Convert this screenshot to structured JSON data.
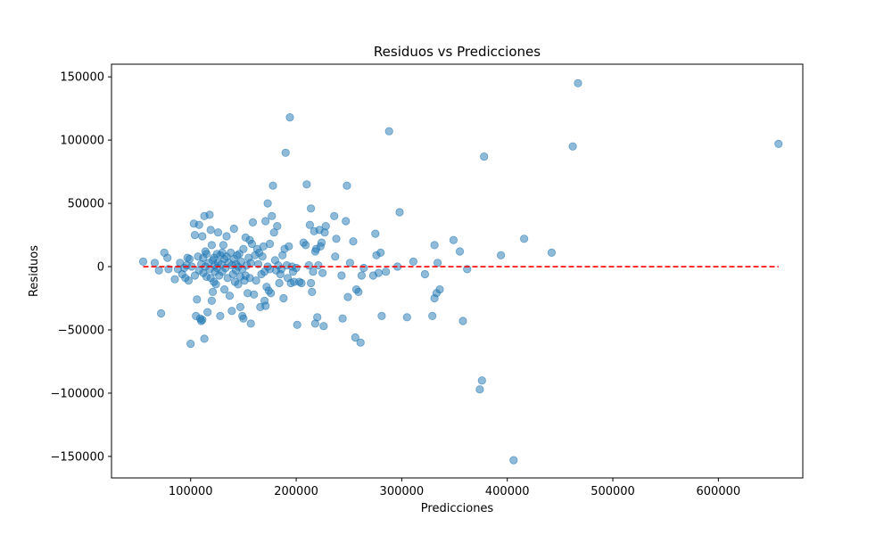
{
  "chart_data": {
    "type": "scatter",
    "title": "Residuos vs Predicciones",
    "xlabel": "Predicciones",
    "ylabel": "Residuos",
    "xlim": [
      25000,
      680000
    ],
    "ylim": [
      -167000,
      160000
    ],
    "xticks": [
      100000,
      200000,
      300000,
      400000,
      500000,
      600000
    ],
    "xtick_labels": [
      "100000",
      "200000",
      "300000",
      "400000",
      "500000",
      "600000"
    ],
    "yticks": [
      -150000,
      -100000,
      -50000,
      0,
      50000,
      100000,
      150000
    ],
    "ytick_labels": [
      "−150000",
      "−100000",
      "−50000",
      "0",
      "50000",
      "100000",
      "150000"
    ],
    "grid": false,
    "marker_color": "#1f77b4",
    "marker_alpha": 0.5,
    "reference_line": {
      "y": 0,
      "x_range": [
        55000,
        657000
      ],
      "color": "#ff0000",
      "style": "dashed"
    },
    "points": [
      [
        55000,
        4000
      ],
      [
        66000,
        3000
      ],
      [
        70000,
        -3000
      ],
      [
        72000,
        -37000
      ],
      [
        75000,
        11000
      ],
      [
        78000,
        7000
      ],
      [
        79000,
        -2000
      ],
      [
        85000,
        -10000
      ],
      [
        88000,
        -2000
      ],
      [
        90000,
        3000
      ],
      [
        92000,
        -6000
      ],
      [
        94000,
        -1000
      ],
      [
        95000,
        -9000
      ],
      [
        96000,
        1000
      ],
      [
        97000,
        7000
      ],
      [
        98000,
        -11000
      ],
      [
        99000,
        6000
      ],
      [
        100000,
        -61000
      ],
      [
        101000,
        0
      ],
      [
        103000,
        34000
      ],
      [
        104000,
        25000
      ],
      [
        104000,
        -7000
      ],
      [
        105000,
        -39000
      ],
      [
        106000,
        -26000
      ],
      [
        107000,
        8000
      ],
      [
        108000,
        33000
      ],
      [
        108000,
        -3000
      ],
      [
        109000,
        -41000
      ],
      [
        110000,
        2000
      ],
      [
        110000,
        -43000
      ],
      [
        111000,
        -42000
      ],
      [
        111000,
        24000
      ],
      [
        112000,
        7000
      ],
      [
        112000,
        -5000
      ],
      [
        113000,
        40000
      ],
      [
        113000,
        -57000
      ],
      [
        114000,
        12000
      ],
      [
        114000,
        0
      ],
      [
        115000,
        10000
      ],
      [
        115000,
        -8000
      ],
      [
        116000,
        -36000
      ],
      [
        117000,
        3000
      ],
      [
        118000,
        41000
      ],
      [
        118000,
        -2000
      ],
      [
        119000,
        29000
      ],
      [
        119000,
        -9000
      ],
      [
        120000,
        17000
      ],
      [
        120000,
        -27000
      ],
      [
        121000,
        5000
      ],
      [
        121000,
        -20000
      ],
      [
        122000,
        7000
      ],
      [
        122000,
        -12000
      ],
      [
        123000,
        1000
      ],
      [
        123000,
        -4000
      ],
      [
        124000,
        -14000
      ],
      [
        125000,
        10000
      ],
      [
        125000,
        -1000
      ],
      [
        126000,
        27000
      ],
      [
        126000,
        3000
      ],
      [
        127000,
        -7000
      ],
      [
        128000,
        9000
      ],
      [
        128000,
        -39000
      ],
      [
        129000,
        2000
      ],
      [
        130000,
        11000
      ],
      [
        130000,
        -4000
      ],
      [
        131000,
        17000
      ],
      [
        132000,
        6000
      ],
      [
        132000,
        -18000
      ],
      [
        133000,
        -1000
      ],
      [
        134000,
        24000
      ],
      [
        134000,
        8000
      ],
      [
        135000,
        -9000
      ],
      [
        136000,
        3000
      ],
      [
        137000,
        -23000
      ],
      [
        138000,
        11000
      ],
      [
        139000,
        1000
      ],
      [
        139000,
        -35000
      ],
      [
        140000,
        -6000
      ],
      [
        141000,
        30000
      ],
      [
        141000,
        6000
      ],
      [
        142000,
        -12000
      ],
      [
        143000,
        2000
      ],
      [
        143000,
        -3000
      ],
      [
        144000,
        9000
      ],
      [
        145000,
        -14000
      ],
      [
        145000,
        0
      ],
      [
        146000,
        10000
      ],
      [
        147000,
        -32000
      ],
      [
        147000,
        -8000
      ],
      [
        148000,
        4000
      ],
      [
        149000,
        -39000
      ],
      [
        149000,
        -2000
      ],
      [
        150000,
        14000
      ],
      [
        150000,
        -41000
      ],
      [
        151000,
        -11000
      ],
      [
        152000,
        23000
      ],
      [
        152000,
        -7000
      ],
      [
        153000,
        1000
      ],
      [
        154000,
        -21000
      ],
      [
        155000,
        7000
      ],
      [
        156000,
        21000
      ],
      [
        156000,
        -9000
      ],
      [
        157000,
        3000
      ],
      [
        157000,
        -45000
      ],
      [
        158000,
        18000
      ],
      [
        159000,
        35000
      ],
      [
        160000,
        -22000
      ],
      [
        161000,
        9000
      ],
      [
        162000,
        -11000
      ],
      [
        163000,
        14000
      ],
      [
        164000,
        2000
      ],
      [
        165000,
        11000
      ],
      [
        166000,
        -32000
      ],
      [
        167000,
        -6000
      ],
      [
        168000,
        8000
      ],
      [
        169000,
        16000
      ],
      [
        170000,
        -4000
      ],
      [
        170000,
        -27000
      ],
      [
        171000,
        36000
      ],
      [
        171000,
        -31000
      ],
      [
        172000,
        -16000
      ],
      [
        173000,
        0
      ],
      [
        173000,
        50000
      ],
      [
        174000,
        -19000
      ],
      [
        175000,
        18000
      ],
      [
        175000,
        -2000
      ],
      [
        176000,
        -21000
      ],
      [
        177000,
        40000
      ],
      [
        178000,
        64000
      ],
      [
        179000,
        27000
      ],
      [
        180000,
        5000
      ],
      [
        181000,
        -3000
      ],
      [
        182000,
        32000
      ],
      [
        183000,
        1000
      ],
      [
        184000,
        -13000
      ],
      [
        185000,
        -6000
      ],
      [
        186000,
        -2000
      ],
      [
        187000,
        9000
      ],
      [
        188000,
        -25000
      ],
      [
        189000,
        14000
      ],
      [
        190000,
        90000
      ],
      [
        191000,
        1000
      ],
      [
        192000,
        -9000
      ],
      [
        193000,
        16000
      ],
      [
        194000,
        118000
      ],
      [
        195000,
        -13000
      ],
      [
        196000,
        0
      ],
      [
        197000,
        -4000
      ],
      [
        198000,
        -12000
      ],
      [
        200000,
        -1000
      ],
      [
        201000,
        -46000
      ],
      [
        203000,
        -12000
      ],
      [
        205000,
        -13000
      ],
      [
        207000,
        19000
      ],
      [
        209000,
        17000
      ],
      [
        210000,
        65000
      ],
      [
        212000,
        1000
      ],
      [
        213000,
        33000
      ],
      [
        214000,
        46000
      ],
      [
        214000,
        -13000
      ],
      [
        215000,
        -20000
      ],
      [
        216000,
        -4000
      ],
      [
        217000,
        28000
      ],
      [
        218000,
        12000
      ],
      [
        218000,
        -45000
      ],
      [
        219000,
        14000
      ],
      [
        220000,
        -40000
      ],
      [
        221000,
        1000
      ],
      [
        222000,
        29000
      ],
      [
        223000,
        16000
      ],
      [
        224000,
        19000
      ],
      [
        225000,
        -5000
      ],
      [
        226000,
        -47000
      ],
      [
        227000,
        27000
      ],
      [
        228000,
        32000
      ],
      [
        236000,
        40000
      ],
      [
        237000,
        8000
      ],
      [
        238000,
        22000
      ],
      [
        243000,
        -7000
      ],
      [
        244000,
        -41000
      ],
      [
        247000,
        36000
      ],
      [
        248000,
        64000
      ],
      [
        249000,
        -24000
      ],
      [
        251000,
        3000
      ],
      [
        254000,
        20000
      ],
      [
        256000,
        -56000
      ],
      [
        257000,
        -18000
      ],
      [
        259000,
        -20000
      ],
      [
        261000,
        -60000
      ],
      [
        262000,
        -7000
      ],
      [
        264000,
        -1000
      ],
      [
        273000,
        -7000
      ],
      [
        275000,
        26000
      ],
      [
        276000,
        9000
      ],
      [
        278000,
        -5000
      ],
      [
        280000,
        11000
      ],
      [
        281000,
        -39000
      ],
      [
        285000,
        -4000
      ],
      [
        288000,
        107000
      ],
      [
        296000,
        0
      ],
      [
        298000,
        43000
      ],
      [
        305000,
        -40000
      ],
      [
        311000,
        4000
      ],
      [
        322000,
        -6000
      ],
      [
        329000,
        -39000
      ],
      [
        331000,
        17000
      ],
      [
        331000,
        -25000
      ],
      [
        333000,
        -21000
      ],
      [
        334000,
        3000
      ],
      [
        336000,
        -18000
      ],
      [
        349000,
        21000
      ],
      [
        355000,
        12000
      ],
      [
        358000,
        -43000
      ],
      [
        362000,
        -2000
      ],
      [
        374000,
        -97000
      ],
      [
        376000,
        -90000
      ],
      [
        378000,
        87000
      ],
      [
        394000,
        9000
      ],
      [
        406000,
        -153000
      ],
      [
        416000,
        22000
      ],
      [
        442000,
        11000
      ],
      [
        462000,
        95000
      ],
      [
        467000,
        145000
      ],
      [
        657000,
        97000
      ]
    ]
  }
}
